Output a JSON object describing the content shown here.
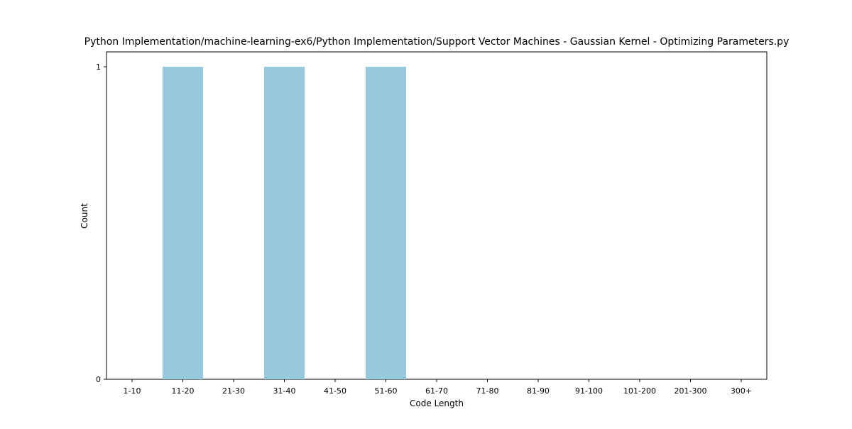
{
  "chart_data": {
    "type": "bar",
    "title": "Python Implementation/machine-learning-ex6/Python Implementation/Support Vector Machines - Gaussian Kernel - Optimizing Parameters.py",
    "xlabel": "Code Length",
    "ylabel": "Count",
    "categories": [
      "1-10",
      "11-20",
      "21-30",
      "31-40",
      "41-50",
      "51-60",
      "61-70",
      "71-80",
      "81-90",
      "91-100",
      "101-200",
      "201-300",
      "300+"
    ],
    "values": [
      0,
      1,
      0,
      1,
      0,
      1,
      0,
      0,
      0,
      0,
      0,
      0,
      0
    ],
    "ylim": [
      0,
      1
    ],
    "yticks": [
      0,
      1
    ],
    "ytick_labels": [
      "0",
      "1"
    ],
    "grid": false,
    "legend": "none",
    "bar_color": "#96c9de"
  }
}
